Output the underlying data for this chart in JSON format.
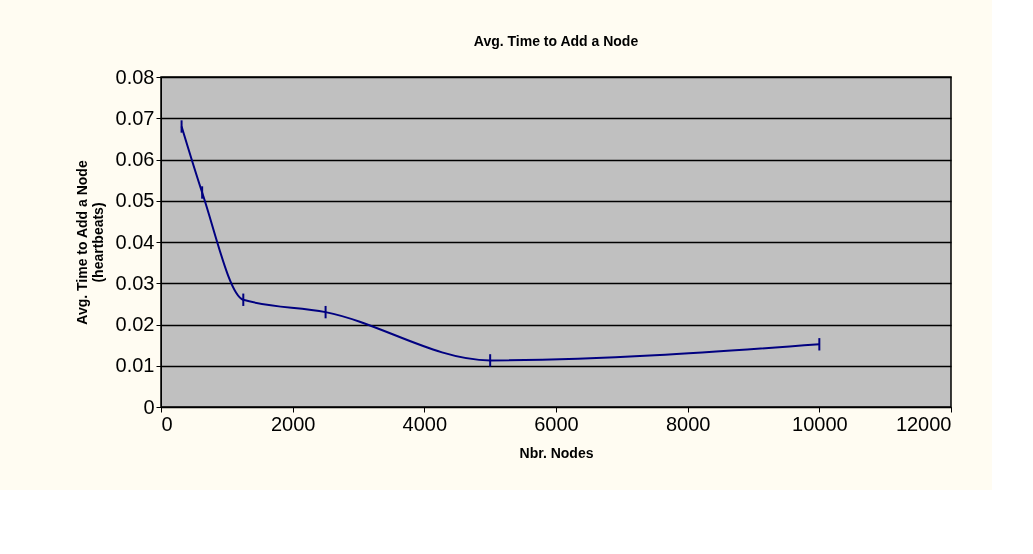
{
  "chart_data": {
    "type": "line",
    "title": "Avg. Time to Add a Node",
    "xlabel": "Nbr. Nodes",
    "ylabel": "Avg. Time to Add a Node (heartbeats)",
    "x": [
      312.5,
      625,
      1250,
      2500,
      5000,
      10000
    ],
    "series": [
      {
        "color": "#000080",
        "values": [
          0.068,
          0.052,
          0.026,
          0.023,
          0.0113,
          0.0152
        ],
        "errors": [
          0.0015,
          0.0015,
          0.0015,
          0.0015,
          0.0015,
          0.0015
        ]
      }
    ],
    "xlim": [
      0,
      12000
    ],
    "xticks": [
      0,
      2000,
      4000,
      6000,
      8000,
      10000,
      12000
    ],
    "ylim": [
      0,
      0.08
    ],
    "yticks": [
      0,
      0.01,
      0.02,
      0.03,
      0.04,
      0.05,
      0.06,
      0.07,
      0.08
    ],
    "grid": "y",
    "marker": "none",
    "line_style": "solid"
  }
}
